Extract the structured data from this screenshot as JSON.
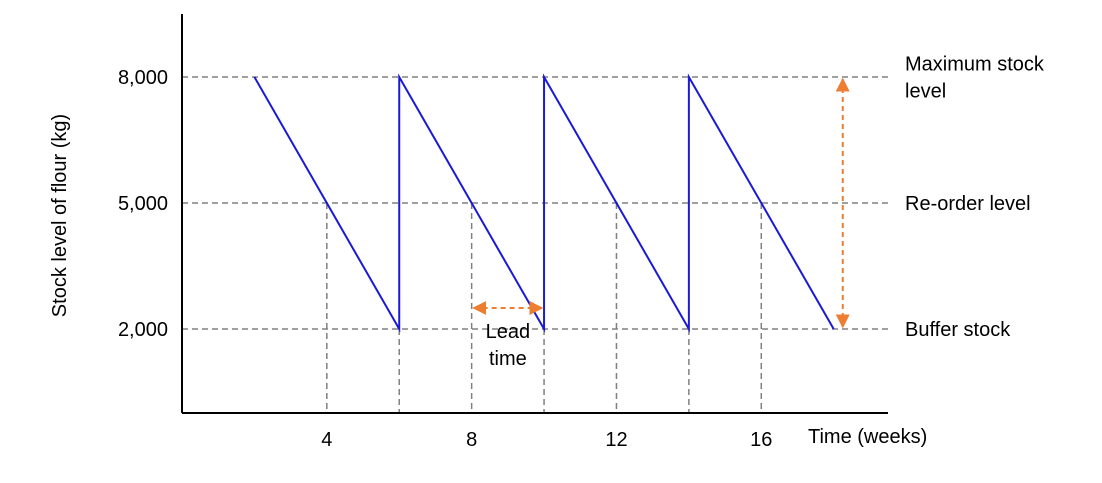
{
  "chart_data": {
    "type": "line",
    "title": "",
    "xlabel": "Time (weeks)",
    "ylabel": "Stock level of flour (kg)",
    "xlim": [
      0,
      19.5
    ],
    "ylim": [
      0,
      9500
    ],
    "x_ticks": [
      4,
      8,
      12,
      16
    ],
    "x_tick_labels": [
      "4",
      "8",
      "12",
      "16"
    ],
    "y_ticks": [
      2000,
      5000,
      8000
    ],
    "y_tick_labels": [
      "2,000",
      "5,000",
      "8,000"
    ],
    "grid": false,
    "series": [
      {
        "color": "#1a1ad6",
        "x": [
          2,
          6,
          6,
          10,
          10,
          14,
          14,
          18
        ],
        "y": [
          8000,
          2000,
          8000,
          2000,
          8000,
          2000,
          8000,
          2000
        ]
      }
    ],
    "reference_lines": [
      {
        "y": 8000,
        "label_lines": [
          "Maximum stock",
          "level"
        ]
      },
      {
        "y": 5000,
        "label_lines": [
          "Re-order level"
        ]
      },
      {
        "y": 2000,
        "label_lines": [
          "Buffer stock"
        ]
      }
    ],
    "reorder_drops": [
      {
        "x": 4,
        "y": 5000
      },
      {
        "x": 6,
        "y": 2000
      },
      {
        "x": 8,
        "y": 5000
      },
      {
        "x": 10,
        "y": 2000
      },
      {
        "x": 12,
        "y": 5000
      },
      {
        "x": 14,
        "y": 2000
      },
      {
        "x": 16,
        "y": 5000
      }
    ],
    "annotations": [
      {
        "kind": "horizontal-arrow",
        "x_from": 8,
        "x_to": 10,
        "y": 2500,
        "label_lines": [
          "Lead",
          "time"
        ]
      },
      {
        "kind": "vertical-arrow",
        "x": 18.25,
        "y_from": 8000,
        "y_to": 2000
      }
    ],
    "colors": {
      "stock_line": "#1a1ad6",
      "guides": "#808080",
      "arrows": "#ed7d31",
      "axes": "#000000"
    }
  }
}
